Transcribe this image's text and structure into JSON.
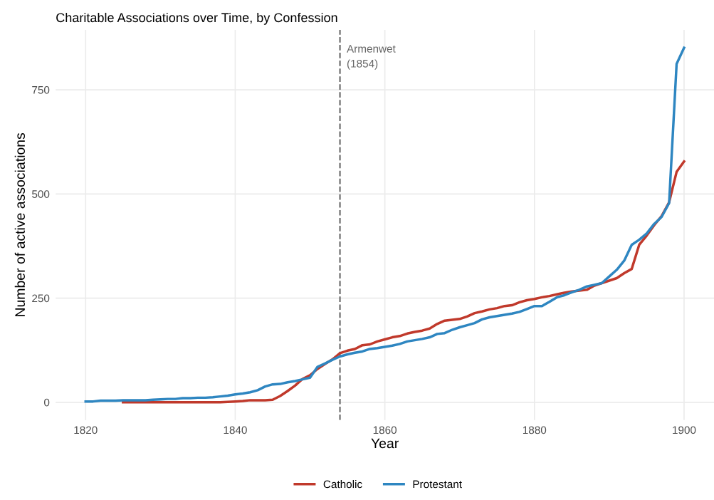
{
  "chart_data": {
    "type": "line",
    "title": "Charitable Associations over Time, by Confession",
    "xlabel": "Year",
    "ylabel": "Number of active associations",
    "series": [
      {
        "name": "Catholic",
        "color": "#c0392b",
        "x": [
          1825,
          1826,
          1827,
          1828,
          1829,
          1830,
          1831,
          1832,
          1833,
          1834,
          1835,
          1836,
          1837,
          1838,
          1839,
          1840,
          1841,
          1842,
          1843,
          1844,
          1845,
          1846,
          1847,
          1848,
          1849,
          1850,
          1851,
          1852,
          1853,
          1854,
          1855,
          1856,
          1857,
          1858,
          1859,
          1860,
          1861,
          1862,
          1863,
          1864,
          1865,
          1866,
          1867,
          1868,
          1869,
          1870,
          1871,
          1872,
          1873,
          1874,
          1875,
          1876,
          1877,
          1878,
          1879,
          1880,
          1881,
          1882,
          1883,
          1884,
          1885,
          1886,
          1887,
          1888,
          1889,
          1890,
          1891,
          1892,
          1893,
          1894,
          1895,
          1896,
          1897,
          1898,
          1899,
          1900
        ],
        "values": [
          0,
          0,
          0,
          0,
          0,
          0,
          0,
          0,
          0,
          0,
          0,
          0,
          0,
          0,
          1,
          2,
          3,
          5,
          5,
          5,
          6,
          15,
          27,
          40,
          56,
          65,
          80,
          92,
          103,
          118,
          124,
          128,
          137,
          139,
          146,
          151,
          156,
          159,
          165,
          169,
          172,
          177,
          188,
          196,
          198,
          200,
          206,
          214,
          218,
          223,
          226,
          231,
          233,
          240,
          245,
          248,
          252,
          255,
          259,
          263,
          266,
          268,
          270,
          280,
          286,
          292,
          298,
          310,
          320,
          378,
          400,
          425,
          447,
          480,
          553,
          578
        ]
      },
      {
        "name": "Protestant",
        "color": "#2e86c1",
        "x": [
          1820,
          1821,
          1822,
          1823,
          1824,
          1825,
          1826,
          1827,
          1828,
          1829,
          1830,
          1831,
          1832,
          1833,
          1834,
          1835,
          1836,
          1837,
          1838,
          1839,
          1840,
          1841,
          1842,
          1843,
          1844,
          1845,
          1846,
          1847,
          1848,
          1849,
          1850,
          1851,
          1852,
          1853,
          1854,
          1855,
          1856,
          1857,
          1858,
          1859,
          1860,
          1861,
          1862,
          1863,
          1864,
          1865,
          1866,
          1867,
          1868,
          1869,
          1870,
          1871,
          1872,
          1873,
          1874,
          1875,
          1876,
          1877,
          1878,
          1879,
          1880,
          1881,
          1882,
          1883,
          1884,
          1885,
          1886,
          1887,
          1888,
          1889,
          1890,
          1891,
          1892,
          1893,
          1894,
          1895,
          1896,
          1897,
          1898,
          1899,
          1900
        ],
        "values": [
          2,
          2,
          4,
          4,
          4,
          5,
          5,
          5,
          5,
          6,
          7,
          8,
          8,
          10,
          10,
          11,
          11,
          12,
          14,
          16,
          19,
          21,
          24,
          29,
          38,
          43,
          44,
          48,
          51,
          55,
          59,
          85,
          93,
          102,
          110,
          115,
          119,
          122,
          128,
          130,
          133,
          136,
          140,
          146,
          149,
          152,
          156,
          164,
          166,
          174,
          180,
          185,
          190,
          199,
          204,
          207,
          210,
          213,
          217,
          224,
          231,
          231,
          241,
          252,
          257,
          264,
          270,
          278,
          282,
          286,
          302,
          318,
          340,
          378,
          390,
          405,
          428,
          445,
          478,
          812,
          851
        ]
      }
    ],
    "xlim": [
      1816,
      1904
    ],
    "xticks": [
      1820,
      1840,
      1860,
      1880,
      1900
    ],
    "ylim": [
      -42.5,
      893.5
    ],
    "yticks": [
      0,
      250,
      500,
      750
    ],
    "ref_lines": [
      {
        "axis": "x",
        "value": 1854,
        "label": "Armenwet\n(1854)",
        "color": "#666666",
        "line_style": "dashed"
      }
    ],
    "grid": true,
    "legend": "bottom",
    "line_style": "solid",
    "marker": "none"
  }
}
